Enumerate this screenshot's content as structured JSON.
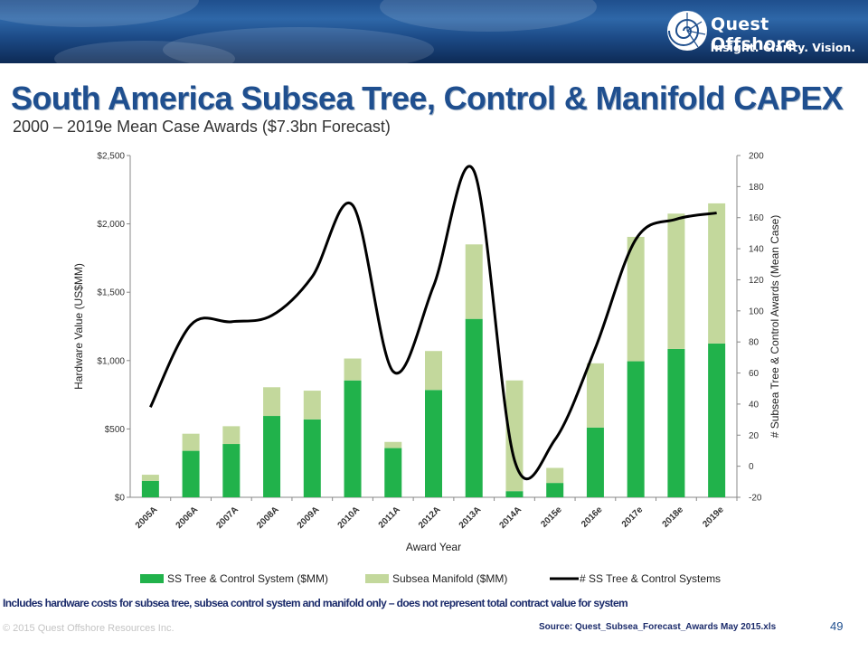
{
  "header": {
    "brand": "Quest Offshore",
    "tagline": "Insight. Clarity. Vision."
  },
  "title": "South America Subsea Tree, Control & Manifold CAPEX",
  "subtitle": "2000 – 2019e Mean Case Awards ($7.3bn Forecast)",
  "chart_data": {
    "type": "bar",
    "stacked": true,
    "categories": [
      "2005A",
      "2006A",
      "2007A",
      "2008A",
      "2009A",
      "2010A",
      "2011A",
      "2012A",
      "2013A",
      "2014A",
      "2015e",
      "2016e",
      "2017e",
      "2018e",
      "2019e"
    ],
    "series": [
      {
        "name": "SS Tree & Control System ($MM)",
        "kind": "bar",
        "axis": "left",
        "color": "#21b24b",
        "values": [
          120,
          340,
          390,
          595,
          570,
          855,
          360,
          785,
          1305,
          45,
          105,
          510,
          995,
          1085,
          1125
        ]
      },
      {
        "name": "Subsea Manifold ($MM)",
        "kind": "bar",
        "axis": "left",
        "color": "#c3d89c",
        "values": [
          45,
          125,
          130,
          210,
          210,
          160,
          45,
          285,
          545,
          810,
          110,
          470,
          910,
          990,
          1025
        ]
      },
      {
        "name": "# SS Tree & Control Systems",
        "kind": "line",
        "axis": "right",
        "color": "#000000",
        "values": [
          38,
          91,
          93,
          97,
          122,
          168,
          61,
          116,
          190,
          4,
          17,
          76,
          146,
          159,
          163
        ]
      }
    ],
    "xlabel": "Award Year",
    "ylabel": "Hardware Value (US$MM)",
    "y2label": "# Subsea Tree & Control Awards (Mean Case)",
    "ylim": [
      0,
      2500
    ],
    "y2lim": [
      -20,
      200
    ],
    "yticks": [
      "$0",
      "$500",
      "$1,000",
      "$1,500",
      "$2,000",
      "$2,500"
    ],
    "yticks_values": [
      0,
      500,
      1000,
      1500,
      2000,
      2500
    ],
    "y2ticks": [
      "-20",
      "0",
      "20",
      "40",
      "60",
      "80",
      "100",
      "120",
      "140",
      "160",
      "180",
      "200"
    ],
    "y2ticks_values": [
      -20,
      0,
      20,
      40,
      60,
      80,
      100,
      120,
      140,
      160,
      180,
      200
    ],
    "legend": [
      "SS Tree & Control System ($MM)",
      "Subsea Manifold ($MM)",
      "# SS Tree & Control Systems"
    ],
    "legend_position": "bottom",
    "grid": false
  },
  "footnote": "Includes hardware costs for subsea tree, subsea control system and manifold only – does not represent total contract value for system",
  "copyright": "© 2015 Quest Offshore Resources Inc.",
  "source": "Source: Quest_Subsea_Forecast_Awards   May 2015.xls",
  "page_number": "49"
}
